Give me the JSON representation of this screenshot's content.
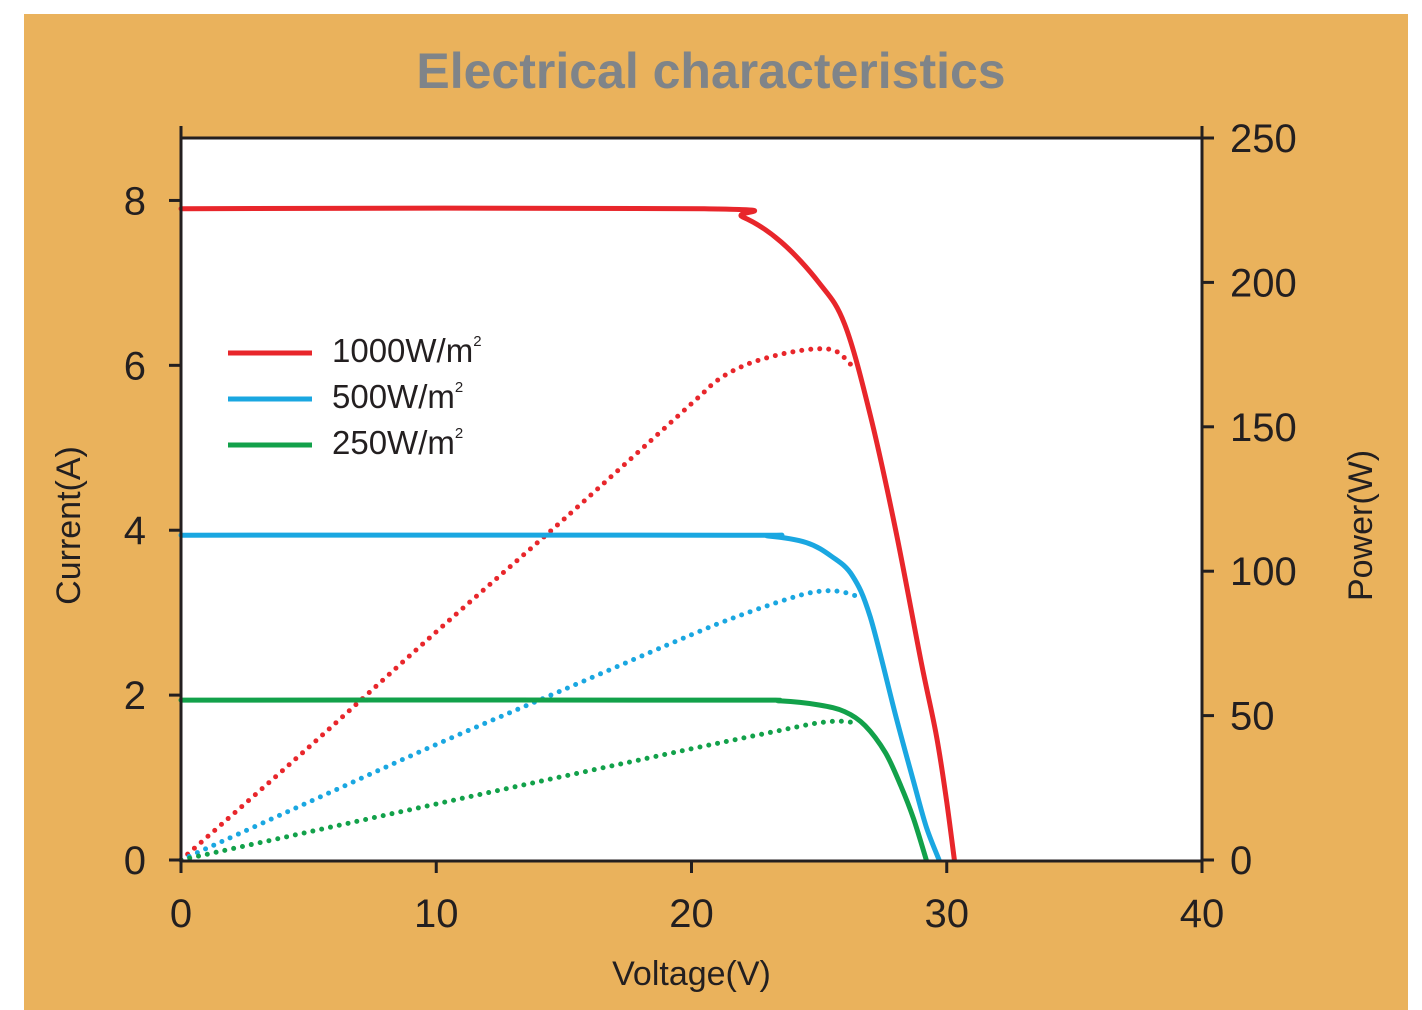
{
  "colors": {
    "background": "#EAB25C",
    "title": "#7F8489",
    "plot_bg": "#FFFFFF",
    "axis": "#231F20"
  },
  "chart_data": {
    "type": "line",
    "title": "Electrical characteristics",
    "xlabel": "Voltage(V)",
    "ylabel": "Current(A)",
    "y2label": "Power(W)",
    "xlim": [
      0,
      40
    ],
    "ylim": [
      0,
      9
    ],
    "y2lim": [
      0,
      250
    ],
    "xticks": [
      0,
      10,
      20,
      30,
      40
    ],
    "yticks": [
      0,
      2,
      4,
      6,
      8
    ],
    "y2ticks": [
      0,
      50,
      100,
      150,
      200,
      250
    ],
    "grid": false,
    "legend_position": "upper-left",
    "legend": [
      {
        "label": "1000W/m",
        "sup": "2",
        "color": "#E8262B"
      },
      {
        "label": "500W/m",
        "sup": "2",
        "color": "#1AA7E1"
      },
      {
        "label": "250W/m",
        "sup": "2",
        "color": "#12A14A"
      }
    ],
    "series": [
      {
        "name": "1000W/m²",
        "kind": "current",
        "axis": "left",
        "color": "#E8262B",
        "style": "solid",
        "x": [
          0,
          20.5,
          22,
          23.5,
          25,
          26,
          27,
          28,
          29,
          29.6,
          30,
          30.3
        ],
        "y": [
          7.9,
          7.9,
          7.8,
          7.5,
          7.0,
          6.5,
          5.4,
          4.0,
          2.4,
          1.5,
          0.7,
          0
        ]
      },
      {
        "name": "1000W/m²",
        "kind": "power",
        "axis": "right",
        "color": "#E8262B",
        "style": "dotted",
        "x": [
          0,
          5,
          10,
          15,
          20,
          21,
          22,
          23,
          24,
          25,
          25.7,
          26.3
        ],
        "y": [
          0,
          39,
          79,
          118,
          158,
          166,
          171,
          174,
          176,
          177,
          176,
          171
        ]
      },
      {
        "name": "500W/m²",
        "kind": "current",
        "axis": "left",
        "color": "#1AA7E1",
        "style": "solid",
        "x": [
          0,
          21.5,
          23,
          24.5,
          25.5,
          26.3,
          27,
          28,
          28.7,
          29.2,
          29.7
        ],
        "y": [
          3.94,
          3.94,
          3.93,
          3.85,
          3.68,
          3.45,
          2.95,
          1.75,
          0.95,
          0.4,
          0
        ]
      },
      {
        "name": "500W/m²",
        "kind": "power",
        "axis": "right",
        "color": "#1AA7E1",
        "style": "dotted",
        "x": [
          0,
          5,
          10,
          15,
          20,
          22,
          24,
          25,
          25.8,
          26.6
        ],
        "y": [
          0,
          20,
          40,
          59,
          78,
          85,
          91,
          93,
          93,
          91
        ]
      },
      {
        "name": "250W/m²",
        "kind": "current",
        "axis": "left",
        "color": "#12A14A",
        "style": "solid",
        "x": [
          0,
          21,
          23.5,
          25,
          26,
          26.8,
          27.6,
          28.2,
          28.7,
          29.2
        ],
        "y": [
          1.94,
          1.94,
          1.93,
          1.88,
          1.8,
          1.63,
          1.3,
          0.9,
          0.5,
          0
        ]
      },
      {
        "name": "250W/m²",
        "kind": "power",
        "axis": "right",
        "color": "#12A14A",
        "style": "dotted",
        "x": [
          0,
          5,
          10,
          15,
          20,
          23,
          25,
          26,
          26.5
        ],
        "y": [
          0,
          9.7,
          19.4,
          29,
          38.5,
          44,
          47.5,
          48,
          47
        ]
      }
    ]
  }
}
